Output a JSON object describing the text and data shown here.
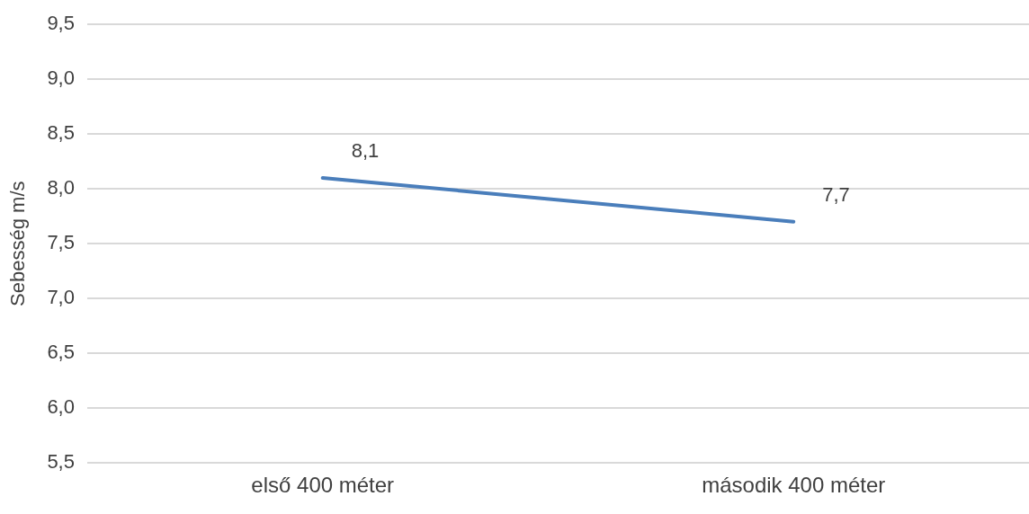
{
  "chart_data": {
    "type": "line",
    "ylabel": "Sebesség m/s",
    "categories": [
      "első 400 méter",
      "második 400 méter"
    ],
    "series": [
      {
        "color": "#4a7ebb",
        "values": [
          8.1,
          7.7
        ],
        "value_labels": [
          "8,1",
          "7,7"
        ]
      }
    ],
    "ylim": [
      5.5,
      9.5
    ],
    "yticks": [
      {
        "value": 5.5,
        "label": "5,5"
      },
      {
        "value": 6.0,
        "label": "6,0"
      },
      {
        "value": 6.5,
        "label": "6,5"
      },
      {
        "value": 7.0,
        "label": "7,0"
      },
      {
        "value": 7.5,
        "label": "7,5"
      },
      {
        "value": 8.0,
        "label": "8,0"
      },
      {
        "value": 8.5,
        "label": "8,5"
      },
      {
        "value": 9.0,
        "label": "9,0"
      },
      {
        "value": 9.5,
        "label": "9,5"
      }
    ],
    "grid": "y",
    "legend": false,
    "marker": "none",
    "line_style": "solid"
  }
}
